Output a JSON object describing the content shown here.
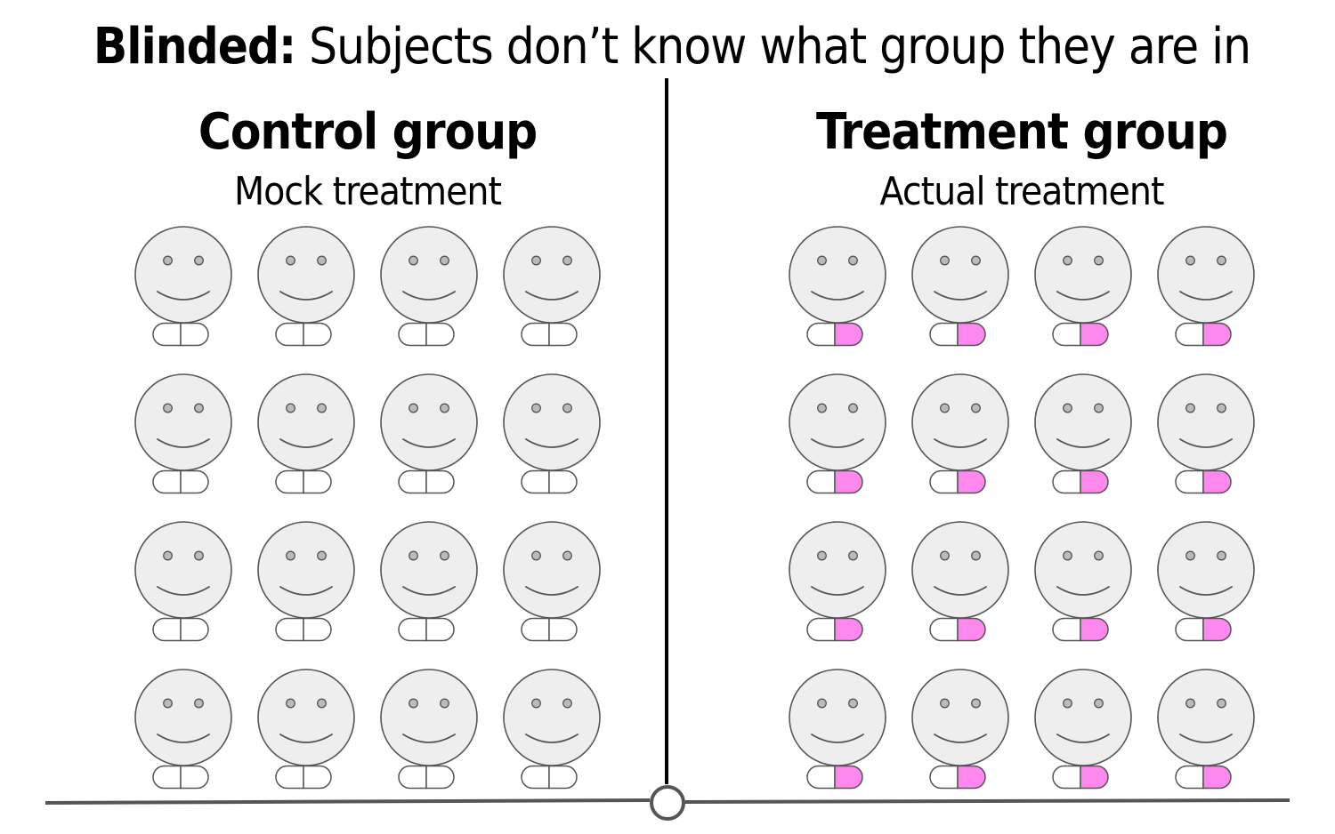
{
  "title": {
    "bold": "Blinded:",
    "rest": " Subjects don’t know what group they are in"
  },
  "groups": [
    {
      "id": "control",
      "title": "Control group",
      "subtitle": "Mock treatment",
      "subjects": 16,
      "pill_colors": {
        "left": "#ffffff",
        "right": "#ffffff"
      }
    },
    {
      "id": "treatment",
      "title": "Treatment group",
      "subtitle": "Actual treatment",
      "subjects": 16,
      "pill_colors": {
        "left": "#ffffff",
        "right": "#ff88ee"
      }
    }
  ],
  "colors": {
    "face_fill": "#eeeeee",
    "outline": "#555555",
    "eye_fill": "#bbbbbb",
    "divider": "#000000",
    "ground": "#555555"
  },
  "icons": {
    "subject": "smiley-face-icon",
    "pill": "pill-icon",
    "pivot": "pivot-circle-icon"
  }
}
